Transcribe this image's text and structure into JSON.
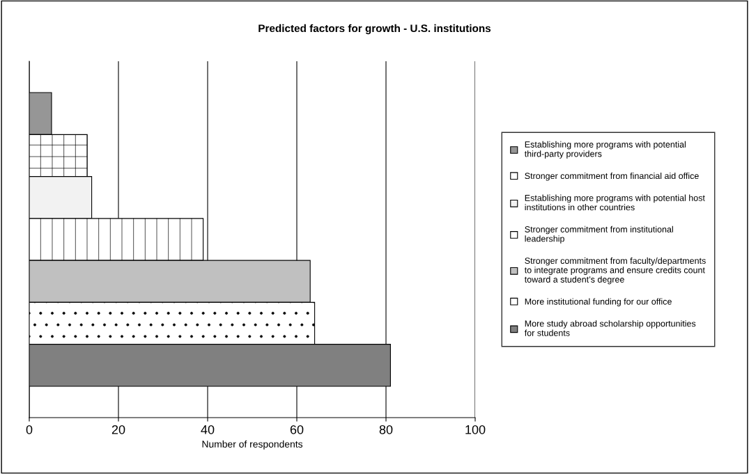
{
  "chart_data": {
    "type": "bar",
    "orientation": "horizontal",
    "title": "Predicted factors for growth - U.S. institutions",
    "xlabel": "Number of respondents",
    "categories": [
      null
    ],
    "series": [
      {
        "name": "Establishing more programs with potential third-party providers",
        "color": "#969696",
        "values": [
          5
        ]
      },
      {
        "name": "Stronger commitment from financial aid office",
        "color": "#ffffff",
        "values": [
          13
        ]
      },
      {
        "name": "Establishing more programs with potential host institutions in other countries",
        "color": "#f2f2f2",
        "values": [
          14
        ]
      },
      {
        "name": "Stronger commitment from institutional leadership",
        "color": "#ffffff",
        "values": [
          39
        ]
      },
      {
        "name": "Stronger commitment from faculty/departments to integrate programs and ensure credits count toward a student’s degree",
        "color": "#c0c0c0",
        "values": [
          63
        ]
      },
      {
        "name": "More institutional funding for our office",
        "color": "#ffffff",
        "values": [
          64
        ]
      },
      {
        "name": "More study abroad scholarship opportunities for students",
        "color": "#808080",
        "values": [
          81
        ]
      }
    ],
    "xlim": [
      0,
      100
    ],
    "xticks": [
      0,
      20,
      40,
      60,
      80,
      100
    ],
    "grid": "x",
    "legend": "right"
  }
}
